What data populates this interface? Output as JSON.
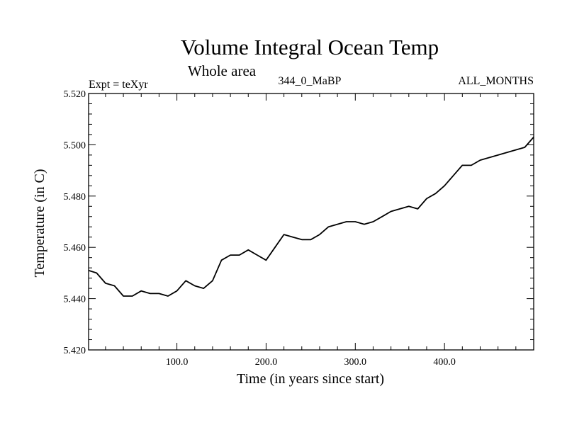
{
  "chart_data": {
    "type": "line",
    "title": "Volume Integral Ocean Temp",
    "subtitle": "Whole area",
    "annotations": {
      "left": "Expt = teXyr",
      "center": "344_0_MaBP",
      "right": "ALL_MONTHS"
    },
    "xlabel": "Time (in years since start)",
    "ylabel": "Temperature (in C)",
    "xlim": [
      1,
      500
    ],
    "ylim": [
      5.42,
      5.52
    ],
    "x_ticks": [
      {
        "v": 100,
        "label": "100.0"
      },
      {
        "v": 200,
        "label": "200.0"
      },
      {
        "v": 300,
        "label": "300.0"
      },
      {
        "v": 400,
        "label": "400.0"
      }
    ],
    "y_ticks": [
      {
        "v": 5.42,
        "label": "5.420"
      },
      {
        "v": 5.44,
        "label": "5.440"
      },
      {
        "v": 5.46,
        "label": "5.460"
      },
      {
        "v": 5.48,
        "label": "5.480"
      },
      {
        "v": 5.5,
        "label": "5.500"
      },
      {
        "v": 5.52,
        "label": "5.520"
      }
    ],
    "grid": false,
    "series": [
      {
        "x": [
          1,
          10,
          20,
          30,
          40,
          50,
          60,
          70,
          80,
          90,
          100,
          110,
          120,
          130,
          140,
          150,
          160,
          170,
          180,
          190,
          200,
          210,
          220,
          230,
          240,
          250,
          260,
          270,
          280,
          290,
          300,
          310,
          320,
          330,
          340,
          350,
          360,
          370,
          380,
          390,
          400,
          410,
          420,
          430,
          440,
          450,
          460,
          470,
          480,
          490,
          500
        ],
        "values": [
          5.451,
          5.45,
          5.446,
          5.445,
          5.441,
          5.441,
          5.443,
          5.442,
          5.442,
          5.441,
          5.443,
          5.447,
          5.445,
          5.444,
          5.447,
          5.455,
          5.457,
          5.457,
          5.459,
          5.457,
          5.455,
          5.46,
          5.465,
          5.464,
          5.463,
          5.463,
          5.465,
          5.468,
          5.469,
          5.47,
          5.47,
          5.469,
          5.47,
          5.472,
          5.474,
          5.475,
          5.476,
          5.475,
          5.479,
          5.481,
          5.484,
          5.488,
          5.492,
          5.492,
          5.494,
          5.495,
          5.496,
          5.497,
          5.498,
          5.499,
          5.503
        ]
      }
    ]
  }
}
